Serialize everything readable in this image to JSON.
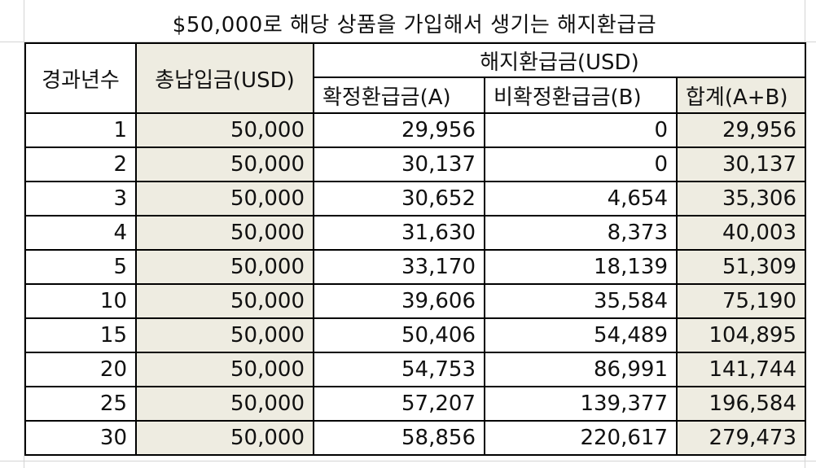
{
  "title": "$50,000로 해당 상품을 가입해서 생기는 해지환급금",
  "headers": {
    "years": "경과년수",
    "total_paid": "총납입금(USD)",
    "refund_group": "해지환급금(USD)",
    "guaranteed": "확정환급금(A)",
    "non_guaranteed": "비확정환급금(B)",
    "sum": "합계(A+B)"
  },
  "rows": [
    {
      "year": "1",
      "paid": "50,000",
      "a": "29,956",
      "b": "0",
      "sum": "29,956"
    },
    {
      "year": "2",
      "paid": "50,000",
      "a": "30,137",
      "b": "0",
      "sum": "30,137"
    },
    {
      "year": "3",
      "paid": "50,000",
      "a": "30,652",
      "b": "4,654",
      "sum": "35,306"
    },
    {
      "year": "4",
      "paid": "50,000",
      "a": "31,630",
      "b": "8,373",
      "sum": "40,003"
    },
    {
      "year": "5",
      "paid": "50,000",
      "a": "33,170",
      "b": "18,139",
      "sum": "51,309"
    },
    {
      "year": "10",
      "paid": "50,000",
      "a": "39,606",
      "b": "35,584",
      "sum": "75,190"
    },
    {
      "year": "15",
      "paid": "50,000",
      "a": "50,406",
      "b": "54,489",
      "sum": "104,895"
    },
    {
      "year": "20",
      "paid": "50,000",
      "a": "54,753",
      "b": "86,991",
      "sum": "141,744"
    },
    {
      "year": "25",
      "paid": "50,000",
      "a": "57,207",
      "b": "139,377",
      "sum": "196,584"
    },
    {
      "year": "30",
      "paid": "50,000",
      "a": "58,856",
      "b": "220,617",
      "sum": "279,473"
    }
  ],
  "colors": {
    "shaded_column": "#eeece1",
    "border": "#000000",
    "gridline": "#d4d4d4"
  }
}
